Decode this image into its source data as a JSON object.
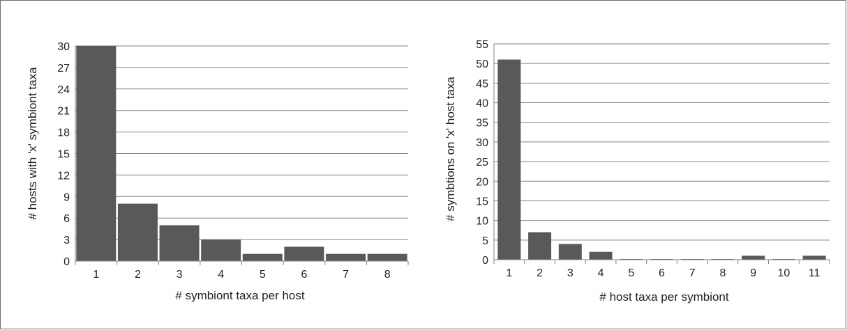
{
  "chart_data": [
    {
      "type": "bar",
      "title": "",
      "xlabel": "# symbiont taxa per host",
      "ylabel": "# hosts with 'x' symbiont taxa",
      "categories": [
        "1",
        "2",
        "3",
        "4",
        "5",
        "6",
        "7",
        "8"
      ],
      "values": [
        30,
        8,
        5,
        3,
        1,
        2,
        1,
        1
      ],
      "ylim": [
        0,
        30
      ],
      "yticks": [
        "0",
        "3",
        "6",
        "9",
        "12",
        "15",
        "18",
        "21",
        "24",
        "27",
        "30"
      ],
      "grid": true,
      "legend": "none",
      "bar_color": "#58595b"
    },
    {
      "type": "bar",
      "title": "",
      "xlabel": "# host taxa per symbiont",
      "ylabel": "# symbtions on 'x' host taxa",
      "categories": [
        "1",
        "2",
        "3",
        "4",
        "5",
        "6",
        "7",
        "8",
        "9",
        "10",
        "11"
      ],
      "values": [
        51,
        7,
        4,
        2,
        0,
        0,
        0,
        0,
        1,
        0,
        1
      ],
      "ylim": [
        0,
        55
      ],
      "yticks": [
        "0",
        "5",
        "10",
        "15",
        "20",
        "25",
        "30",
        "35",
        "40",
        "45",
        "50",
        "55"
      ],
      "grid": true,
      "legend": "none",
      "bar_color": "#58595b"
    }
  ]
}
